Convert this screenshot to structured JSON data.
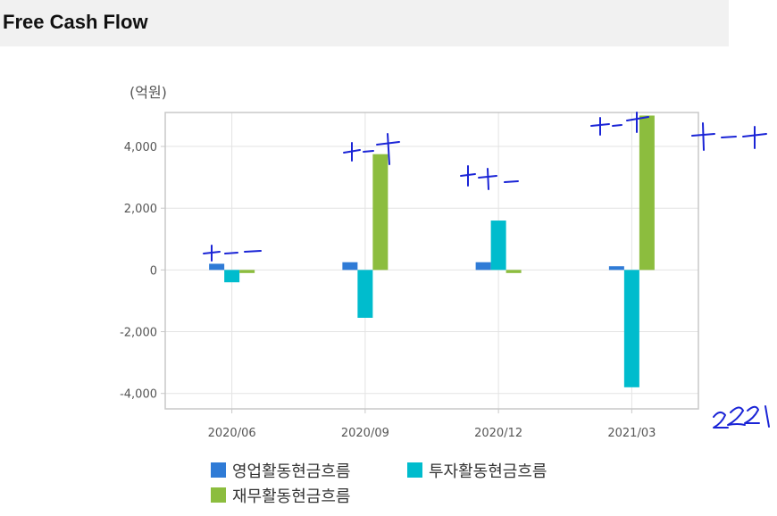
{
  "header": {
    "title": "Free Cash Flow"
  },
  "chart_data": {
    "type": "bar",
    "unit": "(억원)",
    "categories": [
      "2020/06",
      "2020/09",
      "2020/12",
      "2021/03"
    ],
    "series": [
      {
        "name": "영업활동현금흐름",
        "color": "#2f7bd6",
        "values": [
          200,
          250,
          250,
          120
        ]
      },
      {
        "name": "투자활동현금흐름",
        "color": "#00bccd",
        "values": [
          -400,
          -1550,
          1600,
          -3800
        ]
      },
      {
        "name": "재무활동현금흐름",
        "color": "#8cbd3e",
        "values": [
          -100,
          3750,
          -100,
          5000
        ]
      }
    ],
    "ylim": [
      -4500,
      5100
    ],
    "yticks": [
      -4000,
      -2000,
      0,
      2000,
      4000
    ],
    "ytick_labels": [
      "-4,000",
      "-2,000",
      "0",
      "2,000",
      "4,000"
    ],
    "grid": true,
    "legend": "bottom"
  },
  "annotations": [
    "+--",
    "+-+",
    "++-",
    "+-+",
    "+-+",
    "2021"
  ],
  "colors": {
    "header_bg": "#f1f1f1",
    "annotation": "#1a24d6",
    "grid": "#e3e3e3",
    "axis": "#c8c8c8"
  }
}
